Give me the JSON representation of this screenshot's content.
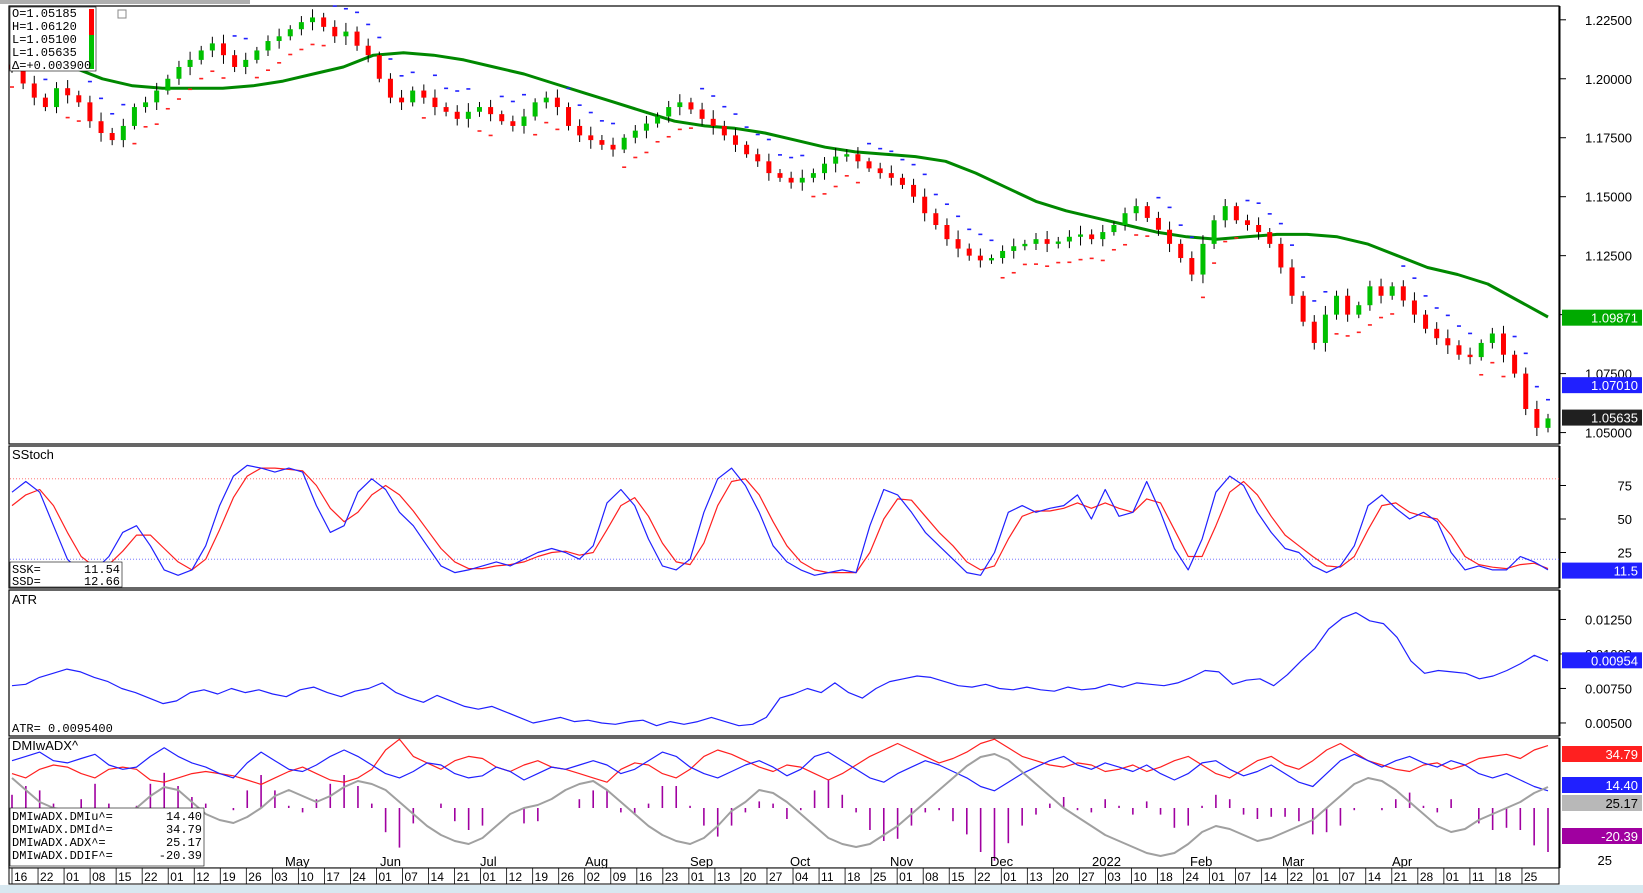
{
  "colors": {
    "up": "#00c000",
    "down": "#ff0000",
    "ma": "#008800",
    "blue": "#2020ff",
    "red": "#ff2020",
    "gray": "#a0a0a0",
    "purple": "#a000a0",
    "badge_black": "#202020"
  },
  "chart_data": {
    "type": "candlestick-with-indicators",
    "price_panel": {
      "ohlc_box": {
        "o": "O=1.05185",
        "h": "H=1.06120",
        "l": "L=1.05100",
        "l2": "L=1.05635",
        "d": "Δ=+0.003900"
      },
      "y_ticks": [
        "1.22500",
        "1.20000",
        "1.17500",
        "1.15000",
        "1.12500",
        "1.10000",
        "1.07500",
        "1.05000"
      ],
      "ylim": [
        1.046,
        1.23
      ],
      "badges": {
        "ma": "1.09871",
        "psar": "1.07010",
        "last": "1.05635"
      },
      "ma_path": [
        1.213,
        1.21,
        1.205,
        1.2,
        1.197,
        1.196,
        1.196,
        1.196,
        1.197,
        1.199,
        1.202,
        1.205,
        1.21,
        1.211,
        1.21,
        1.208,
        1.205,
        1.202,
        1.198,
        1.194,
        1.19,
        1.186,
        1.182,
        1.18,
        1.179,
        1.177,
        1.174,
        1.171,
        1.169,
        1.168,
        1.167,
        1.165,
        1.16,
        1.154,
        1.148,
        1.144,
        1.141,
        1.138,
        1.135,
        1.133,
        1.132,
        1.133,
        1.134,
        1.134,
        1.133,
        1.13,
        1.125,
        1.12,
        1.117,
        1.113,
        1.106,
        1.099
      ],
      "closes": [
        1.204,
        1.198,
        1.192,
        1.188,
        1.196,
        1.193,
        1.19,
        1.182,
        1.177,
        1.174,
        1.18,
        1.188,
        1.19,
        1.195,
        1.2,
        1.205,
        1.208,
        1.212,
        1.215,
        1.21,
        1.205,
        1.208,
        1.212,
        1.216,
        1.218,
        1.221,
        1.224,
        1.226,
        1.222,
        1.218,
        1.22,
        1.214,
        1.21,
        1.2,
        1.192,
        1.19,
        1.195,
        1.192,
        1.188,
        1.186,
        1.183,
        1.186,
        1.188,
        1.185,
        1.182,
        1.18,
        1.184,
        1.19,
        1.192,
        1.188,
        1.18,
        1.176,
        1.174,
        1.172,
        1.17,
        1.175,
        1.178,
        1.181,
        1.184,
        1.188,
        1.19,
        1.187,
        1.183,
        1.18,
        1.176,
        1.172,
        1.168,
        1.165,
        1.16,
        1.158,
        1.156,
        1.158,
        1.16,
        1.164,
        1.167,
        1.168,
        1.165,
        1.162,
        1.16,
        1.158,
        1.155,
        1.15,
        1.143,
        1.138,
        1.132,
        1.128,
        1.125,
        1.123,
        1.124,
        1.127,
        1.129,
        1.13,
        1.132,
        1.13,
        1.131,
        1.133,
        1.134,
        1.132,
        1.135,
        1.138,
        1.143,
        1.146,
        1.141,
        1.136,
        1.13,
        1.124,
        1.117,
        1.13,
        1.14,
        1.146,
        1.14,
        1.138,
        1.135,
        1.13,
        1.12,
        1.108,
        1.097,
        1.088,
        1.1,
        1.108,
        1.1,
        1.104,
        1.112,
        1.108,
        1.112,
        1.106,
        1.1,
        1.094,
        1.09,
        1.087,
        1.083,
        1.082,
        1.088,
        1.092,
        1.083,
        1.075,
        1.06,
        1.052,
        1.056
      ]
    },
    "sstoch_panel": {
      "title": "SStoch",
      "y_ticks": [
        "75",
        "50",
        "25"
      ],
      "ylim": [
        0,
        100
      ],
      "ssk_label": "SSK=",
      "ssk_value": "11.54",
      "ssd_label": "SSD=",
      "ssd_value": "12.66",
      "badge": "11.5",
      "overbought": 80,
      "oversold": 20,
      "k": [
        70,
        78,
        70,
        45,
        20,
        10,
        12,
        22,
        40,
        45,
        30,
        12,
        8,
        12,
        30,
        60,
        82,
        90,
        88,
        85,
        88,
        85,
        60,
        40,
        45,
        70,
        80,
        72,
        55,
        45,
        30,
        15,
        10,
        12,
        15,
        18,
        15,
        20,
        25,
        28,
        25,
        20,
        30,
        62,
        72,
        60,
        35,
        15,
        12,
        20,
        55,
        80,
        88,
        75,
        55,
        30,
        18,
        12,
        8,
        10,
        12,
        10,
        45,
        72,
        68,
        55,
        40,
        30,
        20,
        10,
        8,
        25,
        55,
        60,
        55,
        58,
        60,
        68,
        50,
        72,
        52,
        55,
        78,
        55,
        28,
        12,
        35,
        70,
        82,
        75,
        55,
        40,
        28,
        25,
        15,
        10,
        15,
        30,
        60,
        68,
        58,
        50,
        55,
        48,
        25,
        12,
        15,
        12,
        12,
        22,
        18,
        12
      ],
      "d": [
        60,
        68,
        72,
        60,
        40,
        22,
        14,
        16,
        26,
        38,
        38,
        28,
        18,
        12,
        20,
        42,
        66,
        82,
        88,
        88,
        87,
        86,
        75,
        58,
        48,
        55,
        68,
        75,
        68,
        56,
        42,
        28,
        18,
        13,
        13,
        15,
        16,
        18,
        22,
        25,
        26,
        23,
        25,
        42,
        60,
        66,
        52,
        32,
        18,
        16,
        32,
        60,
        78,
        80,
        68,
        48,
        30,
        18,
        12,
        10,
        10,
        10,
        25,
        50,
        65,
        64,
        52,
        40,
        30,
        18,
        12,
        15,
        35,
        52,
        56,
        56,
        58,
        62,
        58,
        62,
        58,
        55,
        65,
        62,
        42,
        22,
        22,
        45,
        70,
        78,
        68,
        52,
        38,
        30,
        22,
        15,
        14,
        22,
        42,
        60,
        62,
        55,
        52,
        50,
        38,
        22,
        16,
        14,
        13,
        16,
        17,
        13
      ]
    },
    "atr_panel": {
      "title": "ATR",
      "value_label": "ATR= 0.0095400",
      "y_ticks": [
        "0.01250",
        "0.01000",
        "0.00750",
        "0.00500"
      ],
      "ylim": [
        0.0042,
        0.0142
      ],
      "badge": "0.00954",
      "values": [
        0.0077,
        0.0078,
        0.0083,
        0.0086,
        0.0089,
        0.0087,
        0.0083,
        0.008,
        0.0075,
        0.0072,
        0.0068,
        0.0064,
        0.0066,
        0.0072,
        0.0074,
        0.0071,
        0.0075,
        0.0072,
        0.0074,
        0.0071,
        0.0069,
        0.0074,
        0.0076,
        0.0072,
        0.0069,
        0.0073,
        0.0075,
        0.0079,
        0.0072,
        0.0068,
        0.0065,
        0.007,
        0.0066,
        0.0062,
        0.006,
        0.0062,
        0.0058,
        0.0054,
        0.005,
        0.0052,
        0.0054,
        0.0051,
        0.0052,
        0.005,
        0.0049,
        0.0051,
        0.0052,
        0.0048,
        0.0051,
        0.0049,
        0.0051,
        0.0054,
        0.0051,
        0.0048,
        0.0049,
        0.0054,
        0.0068,
        0.0071,
        0.0075,
        0.0072,
        0.0079,
        0.0072,
        0.0068,
        0.0075,
        0.008,
        0.0082,
        0.0084,
        0.0083,
        0.008,
        0.0077,
        0.0076,
        0.0078,
        0.0075,
        0.0074,
        0.0076,
        0.0074,
        0.0073,
        0.0076,
        0.0074,
        0.0075,
        0.0078,
        0.0076,
        0.0079,
        0.0078,
        0.0077,
        0.0079,
        0.0083,
        0.0088,
        0.0087,
        0.0078,
        0.0081,
        0.0082,
        0.0077,
        0.0085,
        0.0095,
        0.0104,
        0.0118,
        0.0126,
        0.013,
        0.0124,
        0.0122,
        0.0112,
        0.0095,
        0.0086,
        0.0088,
        0.0087,
        0.0086,
        0.0082,
        0.0084,
        0.0088,
        0.0093,
        0.0099,
        0.0095
      ]
    },
    "dmi_panel": {
      "title": "DMIwADX^",
      "labels": [
        {
          "name": "DMIwADX.DMIu^=",
          "value": "14.40"
        },
        {
          "name": "DMIwADX.DMId^=",
          "value": "34.79"
        },
        {
          "name": "DMIwADX.ADX^=",
          "value": "25.17"
        },
        {
          "name": "DMIwADX.DDIF^=",
          "value": "-20.39"
        }
      ],
      "y_ticks": [
        "25",
        "25"
      ],
      "badges": {
        "dmid": "34.79",
        "dmiu": "14.40",
        "adx": "25.17",
        "ddif": "-20.39"
      },
      "dmiu": [
        28,
        30,
        32,
        28,
        27,
        29,
        31,
        26,
        24,
        25,
        30,
        34,
        30,
        27,
        25,
        22,
        20,
        27,
        32,
        28,
        24,
        23,
        26,
        30,
        33,
        30,
        26,
        22,
        20,
        23,
        27,
        26,
        22,
        20,
        21,
        25,
        23,
        19,
        22,
        25,
        24,
        26,
        28,
        26,
        22,
        24,
        28,
        32,
        30,
        25,
        22,
        20,
        23,
        26,
        28,
        25,
        21,
        24,
        30,
        32,
        28,
        24,
        20,
        18,
        22,
        25,
        28,
        26,
        23,
        20,
        16,
        14,
        18,
        22,
        25,
        28,
        30,
        26,
        24,
        27,
        25,
        23,
        26,
        22,
        19,
        22,
        27,
        28,
        24,
        21,
        23,
        26,
        22,
        18,
        16,
        22,
        28,
        31,
        28,
        25,
        28,
        30,
        27,
        25,
        28,
        26,
        22,
        20,
        22,
        19,
        16,
        14
      ],
      "dmid": [
        22,
        20,
        24,
        26,
        25,
        22,
        20,
        24,
        25,
        24,
        19,
        18,
        20,
        22,
        23,
        22,
        21,
        19,
        17,
        20,
        23,
        25,
        22,
        19,
        18,
        20,
        24,
        33,
        38,
        30,
        27,
        24,
        28,
        30,
        29,
        25,
        23,
        26,
        28,
        25,
        24,
        22,
        20,
        18,
        24,
        27,
        26,
        22,
        20,
        24,
        30,
        33,
        31,
        28,
        25,
        23,
        26,
        25,
        22,
        19,
        22,
        26,
        30,
        33,
        36,
        33,
        30,
        27,
        29,
        32,
        36,
        38,
        34,
        30,
        28,
        26,
        25,
        27,
        26,
        23,
        24,
        26,
        23,
        25,
        28,
        30,
        26,
        22,
        20,
        24,
        28,
        30,
        26,
        24,
        28,
        33,
        36,
        32,
        28,
        26,
        24,
        23,
        26,
        27,
        24,
        26,
        29,
        30,
        31,
        29,
        33,
        35
      ],
      "adx": [
        28,
        24,
        20,
        18,
        17,
        16,
        15,
        14,
        15,
        18,
        22,
        25,
        24,
        20,
        16,
        14,
        13,
        15,
        18,
        22,
        24,
        22,
        20,
        22,
        25,
        27,
        26,
        24,
        20,
        16,
        12,
        9,
        7,
        6,
        8,
        12,
        16,
        18,
        19,
        21,
        24,
        26,
        27,
        24,
        20,
        16,
        12,
        9,
        7,
        6,
        8,
        12,
        17,
        20,
        24,
        23,
        20,
        16,
        12,
        8,
        6,
        5,
        6,
        9,
        12,
        16,
        20,
        24,
        28,
        32,
        35,
        36,
        34,
        30,
        26,
        22,
        18,
        15,
        12,
        9,
        7,
        5,
        3,
        2,
        3,
        6,
        10,
        12,
        11,
        9,
        7,
        8,
        10,
        12,
        14,
        18,
        22,
        26,
        28,
        27,
        24,
        20,
        16,
        12,
        10,
        11,
        14,
        16,
        18,
        20,
        23,
        25
      ],
      "ddif": [
        6,
        10,
        8,
        2,
        -1,
        4,
        11,
        2,
        -1,
        1,
        11,
        16,
        10,
        5,
        2,
        0,
        -1,
        8,
        15,
        8,
        1,
        -2,
        4,
        11,
        15,
        10,
        2,
        -11,
        -18,
        -7,
        0,
        2,
        -6,
        -10,
        -8,
        0,
        0,
        -7,
        -6,
        0,
        0,
        4,
        8,
        8,
        -2,
        -3,
        2,
        10,
        10,
        1,
        -8,
        -13,
        -8,
        -2,
        3,
        2,
        -5,
        -1,
        8,
        13,
        6,
        -2,
        -10,
        -15,
        -14,
        -8,
        -2,
        -1,
        -6,
        -12,
        -20,
        -24,
        -16,
        -8,
        -3,
        2,
        5,
        -1,
        -2,
        4,
        1,
        -3,
        3,
        -3,
        -9,
        -8,
        1,
        6,
        4,
        -3,
        -5,
        -4,
        -4,
        -6,
        -12,
        -11,
        -8,
        -1,
        0,
        -1,
        4,
        7,
        1,
        -2,
        4,
        0,
        -7,
        -10,
        -9,
        -10,
        -17,
        -20
      ]
    },
    "x_axis": {
      "months": [
        {
          "label": "May",
          "x": 285
        },
        {
          "label": "Jun",
          "x": 380
        },
        {
          "label": "Jul",
          "x": 480
        },
        {
          "label": "Aug",
          "x": 585
        },
        {
          "label": "Sep",
          "x": 690
        },
        {
          "label": "Oct",
          "x": 790
        },
        {
          "label": "Nov",
          "x": 890
        },
        {
          "label": "Dec",
          "x": 990
        },
        {
          "label": "2022",
          "x": 1092
        },
        {
          "label": "Feb",
          "x": 1190
        },
        {
          "label": "Mar",
          "x": 1282
        },
        {
          "label": "Apr",
          "x": 1392
        }
      ],
      "days": [
        "16",
        "22",
        "01",
        "08",
        "15",
        "22",
        "01",
        "12",
        "19",
        "26",
        "03",
        "10",
        "17",
        "24",
        "01",
        "07",
        "14",
        "21",
        "01",
        "12",
        "19",
        "26",
        "02",
        "09",
        "16",
        "23",
        "01",
        "13",
        "20",
        "27",
        "04",
        "11",
        "18",
        "25",
        "01",
        "08",
        "15",
        "22",
        "01",
        "13",
        "20",
        "27",
        "03",
        "10",
        "18",
        "24",
        "01",
        "07",
        "14",
        "22",
        "01",
        "07",
        "14",
        "21",
        "28",
        "01",
        "11",
        "18",
        "25"
      ]
    }
  }
}
